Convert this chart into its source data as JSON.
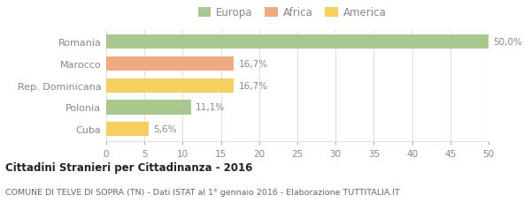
{
  "categories": [
    "Romania",
    "Marocco",
    "Rep. Dominicana",
    "Polonia",
    "Cuba"
  ],
  "values": [
    50.0,
    16.7,
    16.7,
    11.1,
    5.6
  ],
  "bar_colors": [
    "#a8c890",
    "#f0aa80",
    "#f5d060",
    "#a8c890",
    "#f5d060"
  ],
  "bar_labels": [
    "50,0%",
    "16,7%",
    "16,7%",
    "11,1%",
    "5,6%"
  ],
  "legend_items": [
    {
      "label": "Europa",
      "color": "#a8c890"
    },
    {
      "label": "Africa",
      "color": "#f0aa80"
    },
    {
      "label": "America",
      "color": "#f5d060"
    }
  ],
  "xlim": [
    0,
    50
  ],
  "xticks": [
    0,
    5,
    10,
    15,
    20,
    25,
    30,
    35,
    40,
    45,
    50
  ],
  "title_bold": "Cittadini Stranieri per Cittadinanza - 2016",
  "subtitle": "COMUNE DI TELVE DI SOPRA (TN) - Dati ISTAT al 1° gennaio 2016 - Elaborazione TUTTITALIA.IT",
  "background_color": "#ffffff",
  "grid_color": "#e0e0e0",
  "bar_height": 0.65,
  "label_color": "#888888",
  "title_color": "#222222",
  "subtitle_color": "#666666"
}
